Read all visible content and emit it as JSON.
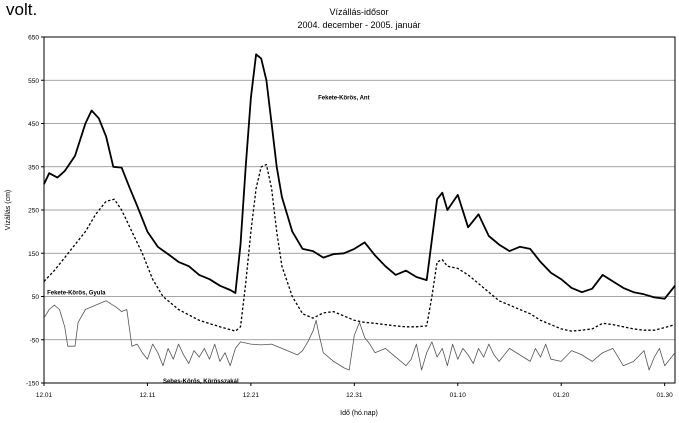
{
  "page": {
    "fragment_text": "volt."
  },
  "chart_data": {
    "type": "line",
    "title": "Vízállás-idősor",
    "subtitle": "2004. december - 2005. január",
    "xlabel": "Idő (hó.nap)",
    "ylabel": "Vízállás (cm)",
    "ylim": [
      -150,
      650
    ],
    "yticks": [
      -150,
      -50,
      50,
      150,
      250,
      350,
      450,
      550,
      650
    ],
    "xlim": [
      0,
      61
    ],
    "xticks": [
      {
        "x": 0,
        "label": "12.01"
      },
      {
        "x": 10,
        "label": "12.11"
      },
      {
        "x": 20,
        "label": "12.21"
      },
      {
        "x": 30,
        "label": "12.31"
      },
      {
        "x": 40,
        "label": "01.10"
      },
      {
        "x": 50,
        "label": "01.20"
      },
      {
        "x": 60,
        "label": "01.30"
      }
    ],
    "grid": true,
    "legend": "none",
    "series": [
      {
        "name": "Fekete-Körös, Ant",
        "style": "solid-thick",
        "color": "#000000",
        "points": [
          [
            0,
            310
          ],
          [
            0.5,
            335
          ],
          [
            1.3,
            325
          ],
          [
            2,
            340
          ],
          [
            3,
            375
          ],
          [
            4,
            450
          ],
          [
            4.6,
            480
          ],
          [
            5.3,
            462
          ],
          [
            6,
            420
          ],
          [
            6.7,
            350
          ],
          [
            7.5,
            348
          ],
          [
            8.3,
            300
          ],
          [
            9,
            260
          ],
          [
            10,
            200
          ],
          [
            11,
            165
          ],
          [
            12,
            148
          ],
          [
            13,
            130
          ],
          [
            14,
            120
          ],
          [
            15,
            100
          ],
          [
            16,
            90
          ],
          [
            17,
            75
          ],
          [
            18,
            65
          ],
          [
            18.5,
            58
          ],
          [
            19,
            170
          ],
          [
            19.5,
            350
          ],
          [
            20,
            510
          ],
          [
            20.5,
            610
          ],
          [
            21,
            600
          ],
          [
            21.5,
            550
          ],
          [
            22,
            450
          ],
          [
            22.5,
            350
          ],
          [
            23,
            280
          ],
          [
            24,
            200
          ],
          [
            25,
            160
          ],
          [
            26,
            155
          ],
          [
            27,
            140
          ],
          [
            28,
            148
          ],
          [
            29,
            150
          ],
          [
            30,
            160
          ],
          [
            31,
            175
          ],
          [
            32,
            145
          ],
          [
            33,
            120
          ],
          [
            34,
            100
          ],
          [
            35,
            110
          ],
          [
            36,
            95
          ],
          [
            37,
            88
          ],
          [
            38,
            275
          ],
          [
            38.5,
            290
          ],
          [
            39,
            250
          ],
          [
            40,
            285
          ],
          [
            41,
            210
          ],
          [
            42,
            240
          ],
          [
            43,
            190
          ],
          [
            44,
            170
          ],
          [
            45,
            155
          ],
          [
            46,
            165
          ],
          [
            47,
            160
          ],
          [
            48,
            130
          ],
          [
            49,
            105
          ],
          [
            50,
            90
          ],
          [
            51,
            70
          ],
          [
            52,
            60
          ],
          [
            53,
            68
          ],
          [
            54,
            100
          ],
          [
            55,
            85
          ],
          [
            56,
            70
          ],
          [
            57,
            60
          ],
          [
            58,
            55
          ],
          [
            59,
            48
          ],
          [
            60,
            45
          ],
          [
            61,
            75
          ]
        ]
      },
      {
        "name": "Fekete-Körös, Gyula",
        "style": "dashed",
        "color": "#000000",
        "points": [
          [
            0,
            85
          ],
          [
            1,
            110
          ],
          [
            2,
            140
          ],
          [
            3,
            170
          ],
          [
            4,
            200
          ],
          [
            5,
            240
          ],
          [
            6,
            270
          ],
          [
            6.8,
            275
          ],
          [
            7.5,
            250
          ],
          [
            8.5,
            200
          ],
          [
            9.5,
            150
          ],
          [
            10.5,
            90
          ],
          [
            11.5,
            50
          ],
          [
            13,
            20
          ],
          [
            15,
            -5
          ],
          [
            17,
            -20
          ],
          [
            18.5,
            -30
          ],
          [
            19,
            -20
          ],
          [
            19.5,
            80
          ],
          [
            20,
            200
          ],
          [
            20.5,
            300
          ],
          [
            21,
            350
          ],
          [
            21.5,
            355
          ],
          [
            22,
            300
          ],
          [
            22.5,
            200
          ],
          [
            23,
            120
          ],
          [
            24,
            50
          ],
          [
            25,
            10
          ],
          [
            26,
            0
          ],
          [
            27,
            12
          ],
          [
            28,
            15
          ],
          [
            29,
            5
          ],
          [
            30,
            -5
          ],
          [
            31,
            -10
          ],
          [
            32,
            -12
          ],
          [
            33,
            -15
          ],
          [
            34,
            -18
          ],
          [
            35,
            -20
          ],
          [
            36,
            -20
          ],
          [
            37,
            -18
          ],
          [
            37.5,
            50
          ],
          [
            38,
            130
          ],
          [
            38.5,
            135
          ],
          [
            39,
            120
          ],
          [
            40,
            115
          ],
          [
            41,
            100
          ],
          [
            42,
            80
          ],
          [
            43,
            60
          ],
          [
            44,
            40
          ],
          [
            45,
            30
          ],
          [
            46,
            20
          ],
          [
            47,
            10
          ],
          [
            48,
            -5
          ],
          [
            49,
            -15
          ],
          [
            50,
            -25
          ],
          [
            51,
            -30
          ],
          [
            52,
            -28
          ],
          [
            53,
            -25
          ],
          [
            54,
            -12
          ],
          [
            55,
            -15
          ],
          [
            56,
            -20
          ],
          [
            57,
            -25
          ],
          [
            58,
            -28
          ],
          [
            59,
            -28
          ],
          [
            60,
            -22
          ],
          [
            61,
            -15
          ]
        ]
      },
      {
        "name": "Sebes-Körös, Körösszakál",
        "style": "solid-thin",
        "color": "#555555",
        "points": [
          [
            0,
            0
          ],
          [
            0.5,
            20
          ],
          [
            1,
            30
          ],
          [
            1.5,
            20
          ],
          [
            2,
            -20
          ],
          [
            2.3,
            -65
          ],
          [
            3,
            -65
          ],
          [
            3.3,
            -10
          ],
          [
            4,
            20
          ],
          [
            5,
            30
          ],
          [
            6,
            40
          ],
          [
            7,
            25
          ],
          [
            7.5,
            15
          ],
          [
            8,
            20
          ],
          [
            8.5,
            -65
          ],
          [
            9,
            -60
          ],
          [
            9.5,
            -80
          ],
          [
            10,
            -95
          ],
          [
            10.5,
            -60
          ],
          [
            11,
            -80
          ],
          [
            11.5,
            -110
          ],
          [
            12,
            -70
          ],
          [
            12.5,
            -95
          ],
          [
            13,
            -60
          ],
          [
            13.5,
            -85
          ],
          [
            14,
            -105
          ],
          [
            14.5,
            -75
          ],
          [
            15,
            -90
          ],
          [
            15.5,
            -70
          ],
          [
            16,
            -95
          ],
          [
            16.5,
            -60
          ],
          [
            17,
            -100
          ],
          [
            17.5,
            -80
          ],
          [
            18,
            -110
          ],
          [
            18.5,
            -70
          ],
          [
            19,
            -55
          ],
          [
            20,
            -60
          ],
          [
            21,
            -62
          ],
          [
            22,
            -60
          ],
          [
            23,
            -70
          ],
          [
            24,
            -80
          ],
          [
            24.5,
            -85
          ],
          [
            25,
            -75
          ],
          [
            25.5,
            -55
          ],
          [
            26,
            -30
          ],
          [
            26.3,
            -5
          ],
          [
            26.6,
            -40
          ],
          [
            27,
            -80
          ],
          [
            28,
            -100
          ],
          [
            29,
            -115
          ],
          [
            29.5,
            -120
          ],
          [
            30,
            -40
          ],
          [
            30.5,
            -10
          ],
          [
            31,
            -45
          ],
          [
            31.5,
            -60
          ],
          [
            32,
            -80
          ],
          [
            33,
            -70
          ],
          [
            34,
            -90
          ],
          [
            35,
            -110
          ],
          [
            35.5,
            -95
          ],
          [
            36,
            -60
          ],
          [
            36.5,
            -120
          ],
          [
            37,
            -80
          ],
          [
            37.5,
            -55
          ],
          [
            38,
            -90
          ],
          [
            38.5,
            -70
          ],
          [
            39,
            -110
          ],
          [
            39.5,
            -60
          ],
          [
            40,
            -95
          ],
          [
            40.5,
            -70
          ],
          [
            41,
            -85
          ],
          [
            41.5,
            -105
          ],
          [
            42,
            -70
          ],
          [
            42.5,
            -90
          ],
          [
            43,
            -60
          ],
          [
            43.5,
            -85
          ],
          [
            44,
            -100
          ],
          [
            45,
            -70
          ],
          [
            46,
            -85
          ],
          [
            47,
            -100
          ],
          [
            47.5,
            -70
          ],
          [
            48,
            -90
          ],
          [
            48.5,
            -60
          ],
          [
            49,
            -95
          ],
          [
            50,
            -100
          ],
          [
            51,
            -75
          ],
          [
            52,
            -85
          ],
          [
            53,
            -100
          ],
          [
            54,
            -80
          ],
          [
            55,
            -70
          ],
          [
            55.5,
            -90
          ],
          [
            56,
            -110
          ],
          [
            57,
            -100
          ],
          [
            58,
            -75
          ],
          [
            58.5,
            -120
          ],
          [
            59,
            -90
          ],
          [
            59.5,
            -70
          ],
          [
            60,
            -110
          ],
          [
            61,
            -80
          ]
        ]
      }
    ],
    "annotations": [
      {
        "series": 0,
        "text": "Fekete-Körös, Ant",
        "x": 26.5,
        "y": 505
      },
      {
        "series": 1,
        "text": "Fekete-Körös, Gyula",
        "x": 0.3,
        "y": 55
      },
      {
        "series": 2,
        "text": "Sebes-Körös, Körösszakál",
        "x": 11.5,
        "y": -150
      }
    ]
  }
}
